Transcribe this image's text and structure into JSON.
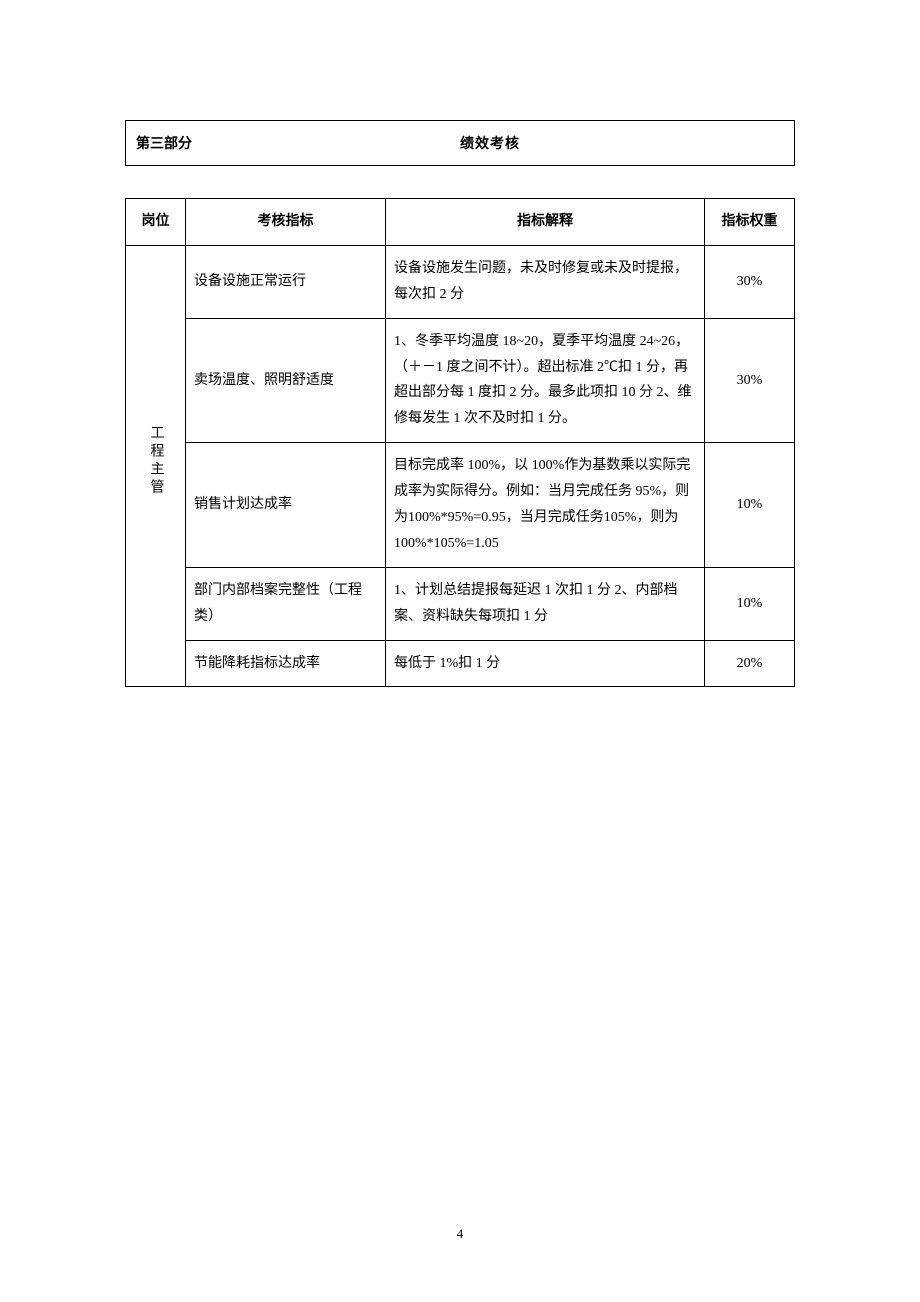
{
  "header": {
    "section_label": "第三部分",
    "title": "绩效考核"
  },
  "table": {
    "columns": {
      "position": "岗位",
      "metric": "考核指标",
      "explain": "指标解释",
      "weight": "指标权重"
    },
    "position_label": "工程主管",
    "rows": [
      {
        "metric": "设备设施正常运行",
        "explain": "设备设施发生问题，未及时修复或未及时提报，每次扣 2 分",
        "weight": "30%"
      },
      {
        "metric": "卖场温度、照明舒适度",
        "explain": "1、冬季平均温度 18~20，夏季平均温度 24~26，（＋－1 度之间不计）。超出标准 2℃扣 1 分，再超出部分每 1 度扣 2 分。最多此项扣 10 分\n2、维修每发生 1 次不及时扣 1 分。",
        "weight": "30%"
      },
      {
        "metric": "销售计划达成率",
        "explain": "目标完成率 100%，以 100%作为基数乘以实际完成率为实际得分。例如：当月完成任务 95%，则为100%*95%=0.95，当月完成任务105%，则为 100%*105%=1.05",
        "weight": "10%"
      },
      {
        "metric": "部门内部档案完整性（工程类）",
        "explain": "1、计划总结提报每延迟 1 次扣 1 分\n2、内部档案、资料缺失每项扣 1 分",
        "weight": "10%"
      },
      {
        "metric": "节能降耗指标达成率",
        "explain": "每低于 1%扣 1 分",
        "weight": "20%"
      }
    ]
  },
  "page_number": "4",
  "colors": {
    "text": "#000000",
    "background": "#ffffff",
    "border": "#000000"
  }
}
